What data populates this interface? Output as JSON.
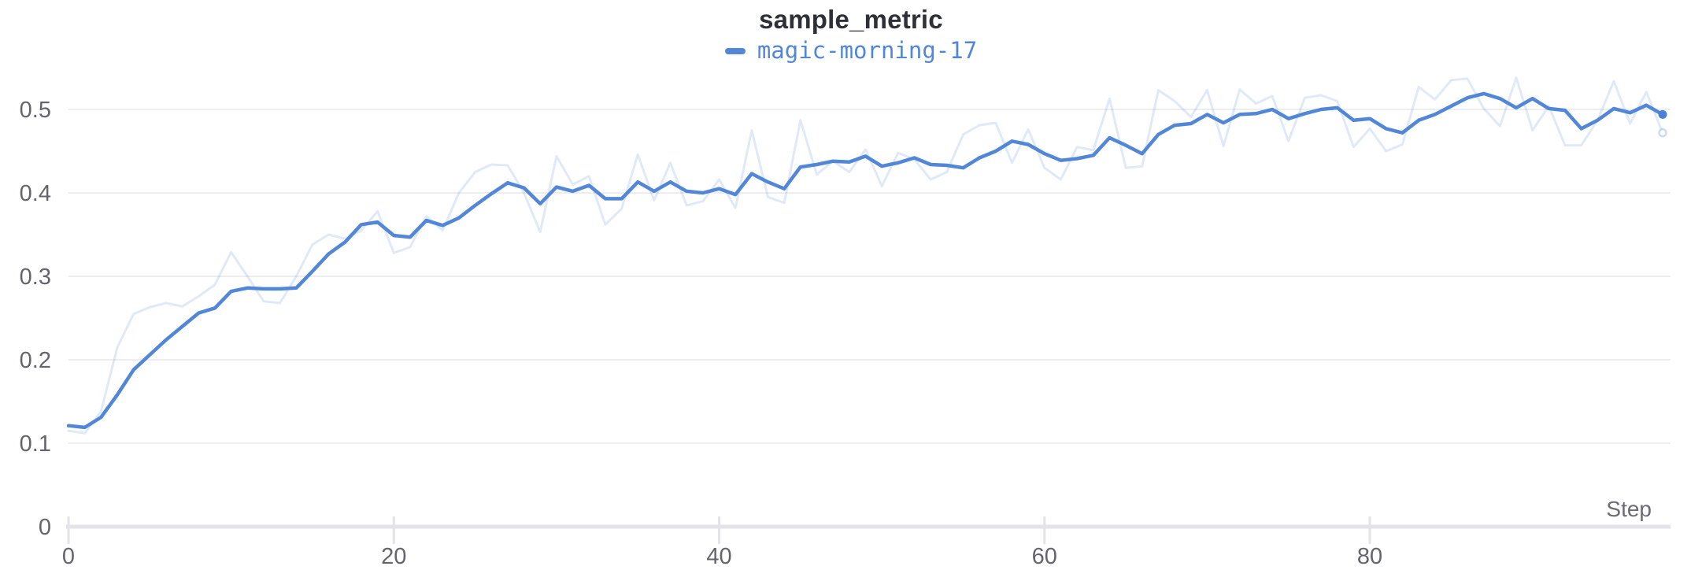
{
  "panel": {
    "title": "sample_metric"
  },
  "legend": {
    "position": "top-center",
    "items": [
      {
        "label": "magic-morning-17",
        "color": "#5287d8"
      }
    ]
  },
  "colors": {
    "title_text": "#2d3137",
    "smoothed_line": "#5287d8",
    "raw_line_rgba": "rgba(82,135,216,0.18)",
    "gridline": "#ededf0",
    "axis_line": "#e3e3e8",
    "tick_stub": "#e3e3e8",
    "tick_label": "#64646e",
    "step_label": "#6b6b75",
    "end_dot": "#4c80d6",
    "raw_end_ring": "rgba(82,135,216,0.30)",
    "background": "#ffffff"
  },
  "axes": {
    "x_label": "Step",
    "x_tick_labels": [
      "0",
      "20",
      "40",
      "60",
      "80"
    ],
    "y_tick_labels": [
      "0",
      "0.1",
      "0.2",
      "0.3",
      "0.4",
      "0.5"
    ]
  },
  "chart_data": {
    "type": "line",
    "title": "sample_metric",
    "xlabel": "Step",
    "ylabel": "",
    "xlim": [
      0,
      99
    ],
    "ylim": [
      0,
      0.555
    ],
    "x_ticks": [
      0,
      20,
      40,
      60,
      80
    ],
    "y_ticks": [
      0,
      0.1,
      0.2,
      0.3,
      0.4,
      0.5
    ],
    "grid": "horizontal-only",
    "legend_position": "top-center",
    "x": [
      0,
      1,
      2,
      3,
      4,
      5,
      6,
      7,
      8,
      9,
      10,
      11,
      12,
      13,
      14,
      15,
      16,
      17,
      18,
      19,
      20,
      21,
      22,
      23,
      24,
      25,
      26,
      27,
      28,
      29,
      30,
      31,
      32,
      33,
      34,
      35,
      36,
      37,
      38,
      39,
      40,
      41,
      42,
      43,
      44,
      45,
      46,
      47,
      48,
      49,
      50,
      51,
      52,
      53,
      54,
      55,
      56,
      57,
      58,
      59,
      60,
      61,
      62,
      63,
      64,
      65,
      66,
      67,
      68,
      69,
      70,
      71,
      72,
      73,
      74,
      75,
      76,
      77,
      78,
      79,
      80,
      81,
      82,
      83,
      84,
      85,
      86,
      87,
      88,
      89,
      90,
      91,
      92,
      93,
      94,
      95,
      96,
      97,
      98
    ],
    "series": [
      {
        "name": "magic-morning-17 (raw)",
        "role": "raw",
        "values": [
          0.115,
          0.112,
          0.138,
          0.215,
          0.255,
          0.263,
          0.268,
          0.264,
          0.276,
          0.29,
          0.329,
          0.3,
          0.27,
          0.268,
          0.3,
          0.338,
          0.35,
          0.345,
          0.355,
          0.378,
          0.328,
          0.335,
          0.372,
          0.355,
          0.4,
          0.425,
          0.434,
          0.433,
          0.4,
          0.353,
          0.444,
          0.41,
          0.42,
          0.362,
          0.381,
          0.446,
          0.391,
          0.436,
          0.385,
          0.39,
          0.416,
          0.382,
          0.475,
          0.395,
          0.388,
          0.487,
          0.422,
          0.438,
          0.425,
          0.452,
          0.408,
          0.448,
          0.44,
          0.416,
          0.425,
          0.47,
          0.481,
          0.484,
          0.436,
          0.476,
          0.43,
          0.416,
          0.455,
          0.451,
          0.513,
          0.43,
          0.432,
          0.523,
          0.51,
          0.491,
          0.523,
          0.456,
          0.524,
          0.507,
          0.516,
          0.462,
          0.514,
          0.517,
          0.51,
          0.455,
          0.477,
          0.45,
          0.458,
          0.527,
          0.512,
          0.535,
          0.537,
          0.501,
          0.48,
          0.538,
          0.475,
          0.504,
          0.457,
          0.457,
          0.487,
          0.534,
          0.483,
          0.521,
          0.472
        ]
      },
      {
        "name": "magic-morning-17",
        "role": "smoothed",
        "values": [
          0.121,
          0.119,
          0.131,
          0.158,
          0.188,
          0.206,
          0.224,
          0.24,
          0.256,
          0.262,
          0.282,
          0.286,
          0.285,
          0.285,
          0.286,
          0.306,
          0.327,
          0.341,
          0.362,
          0.365,
          0.349,
          0.347,
          0.367,
          0.361,
          0.37,
          0.385,
          0.399,
          0.412,
          0.406,
          0.387,
          0.407,
          0.402,
          0.409,
          0.393,
          0.393,
          0.413,
          0.402,
          0.413,
          0.402,
          0.4,
          0.405,
          0.398,
          0.423,
          0.413,
          0.405,
          0.431,
          0.434,
          0.438,
          0.437,
          0.444,
          0.432,
          0.436,
          0.442,
          0.434,
          0.433,
          0.43,
          0.442,
          0.45,
          0.462,
          0.458,
          0.447,
          0.439,
          0.441,
          0.445,
          0.466,
          0.457,
          0.447,
          0.47,
          0.481,
          0.483,
          0.494,
          0.484,
          0.494,
          0.495,
          0.5,
          0.489,
          0.495,
          0.5,
          0.502,
          0.487,
          0.489,
          0.477,
          0.472,
          0.487,
          0.494,
          0.504,
          0.514,
          0.519,
          0.513,
          0.502,
          0.513,
          0.501,
          0.499,
          0.477,
          0.487,
          0.501,
          0.496,
          0.505,
          0.494
        ]
      }
    ],
    "end_markers": {
      "smoothed": {
        "step": 98,
        "value": 0.494,
        "style": "filled-dot"
      },
      "raw": {
        "step": 98,
        "value": 0.472,
        "style": "open-ring"
      }
    }
  }
}
